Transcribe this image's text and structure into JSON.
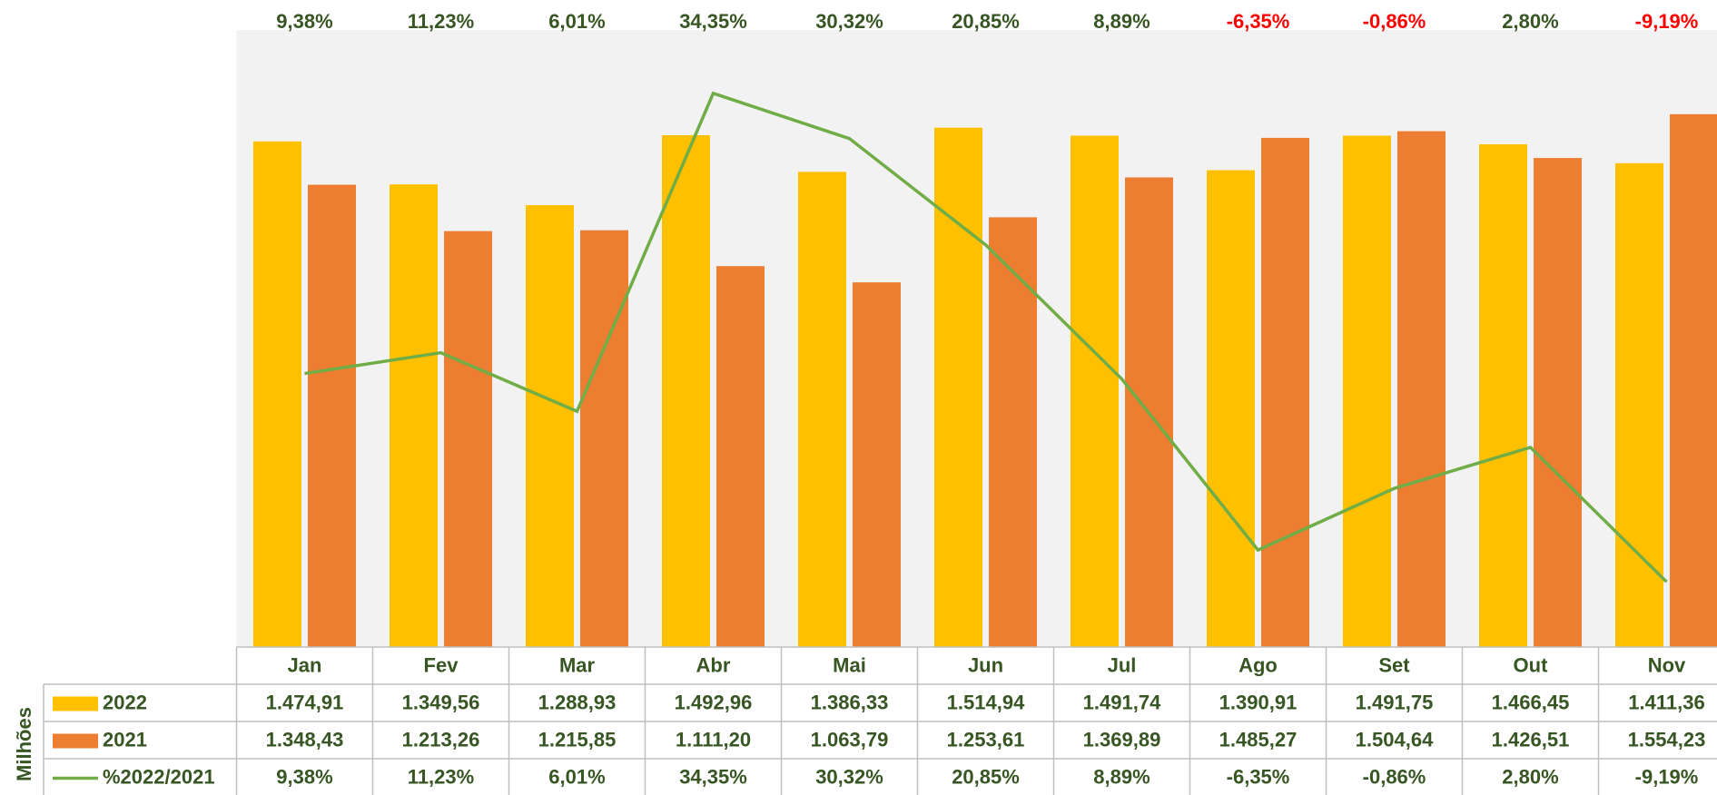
{
  "chart_data": {
    "type": "bar",
    "y_axis_label": "Milhões",
    "categories": [
      "Jan",
      "Fev",
      "Mar",
      "Abr",
      "Mai",
      "Jun",
      "Jul",
      "Ago",
      "Set",
      "Out",
      "Nov"
    ],
    "series": [
      {
        "name": "2022",
        "color": "#ffc000",
        "values": [
          1474.91,
          1349.56,
          1288.93,
          1492.96,
          1386.33,
          1514.94,
          1491.74,
          1390.91,
          1491.75,
          1466.45,
          1411.36
        ],
        "value_labels": [
          "1.474,91",
          "1.349,56",
          "1.288,93",
          "1.492,96",
          "1.386,33",
          "1.514,94",
          "1.491,74",
          "1.390,91",
          "1.491,75",
          "1.466,45",
          "1.411,36"
        ]
      },
      {
        "name": "2021",
        "color": "#ed7d31",
        "values": [
          1348.43,
          1213.26,
          1215.85,
          1111.2,
          1063.79,
          1253.61,
          1369.89,
          1485.27,
          1504.64,
          1426.51,
          1554.23
        ],
        "value_labels": [
          "1.348,43",
          "1.213,26",
          "1.215,85",
          "1.111,20",
          "1.063,79",
          "1.253,61",
          "1.369,89",
          "1.485,27",
          "1.504,64",
          "1.426,51",
          "1.554,23"
        ]
      },
      {
        "name": "%2022/2021",
        "color": "#70ad47",
        "type": "line",
        "axis": "y2",
        "values": [
          9.38,
          11.23,
          6.01,
          34.35,
          30.32,
          20.85,
          8.89,
          -6.35,
          -0.86,
          2.8,
          -9.19
        ],
        "value_labels": [
          "9,38%",
          "11,23%",
          "6,01%",
          "34,35%",
          "30,32%",
          "20,85%",
          "8,89%",
          "-6,35%",
          "-0,86%",
          "2,80%",
          "-9,19%"
        ]
      }
    ],
    "ylim": [
      0,
      1800
    ],
    "y2lim": [
      -15,
      40
    ],
    "positive_label_color": "#375623",
    "negative_label_color": "#ff0000",
    "plot_background": "#f2f2f2"
  }
}
